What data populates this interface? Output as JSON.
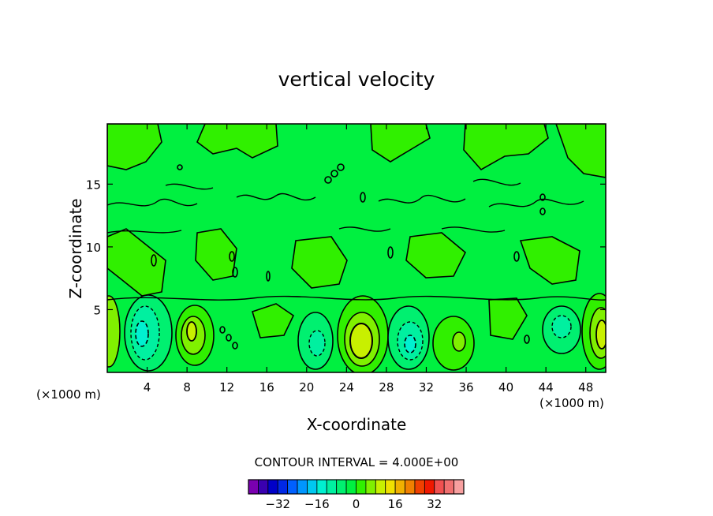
{
  "chart_data": {
    "type": "heatmap",
    "title": "vertical velocity",
    "xlabel": "X-coordinate",
    "ylabel": "Z-coordinate",
    "x_unit": "(×1000 m)",
    "y_unit": "(×1000 m)",
    "xlim": [
      0,
      50
    ],
    "ylim": [
      0,
      19.8
    ],
    "x_ticks": [
      4,
      8,
      12,
      16,
      20,
      24,
      28,
      32,
      36,
      40,
      44,
      48
    ],
    "y_ticks": [
      5,
      10,
      15
    ],
    "contour_interval_text": "CONTOUR INTERVAL = 4.000E+00",
    "contour_interval": 4.0,
    "colorbar": {
      "colors": [
        "#7a00b0",
        "#3a00b0",
        "#0000c8",
        "#0028e6",
        "#0060ff",
        "#0096ff",
        "#00c8f0",
        "#00f0d0",
        "#00f0a0",
        "#00f070",
        "#00f040",
        "#30f000",
        "#80f000",
        "#c8f000",
        "#f0e000",
        "#f0b000",
        "#f08000",
        "#f04000",
        "#f01800",
        "#f05050",
        "#f07070",
        "#f8a0a0"
      ],
      "tick_labels": [
        "-32",
        "-16",
        "0",
        "16",
        "32"
      ]
    },
    "features": [
      {
        "x": 3.0,
        "z": 3.1,
        "value": -8
      },
      {
        "x": 8.5,
        "z": 3.5,
        "value": 8
      },
      {
        "x": 21.0,
        "z": 2.5,
        "value": -5
      },
      {
        "x": 25.6,
        "z": 2.8,
        "value": 12
      },
      {
        "x": 30.0,
        "z": 2.6,
        "value": -8
      },
      {
        "x": 34.7,
        "z": 2.6,
        "value": 6
      },
      {
        "x": 45.0,
        "z": 3.4,
        "value": -5
      },
      {
        "x": 49.5,
        "z": 3.2,
        "value": 10
      },
      {
        "x": 0.2,
        "z": 3.2,
        "value": 8
      }
    ]
  }
}
